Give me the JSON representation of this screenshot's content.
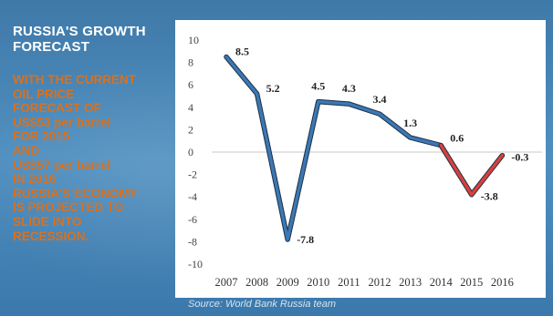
{
  "slide": {
    "title_lines": [
      "RUSSIA'S GROWTH",
      "FORECAST"
    ],
    "body_lines": [
      "WITH THE CURRENT",
      "OIL PRICE",
      "FORECAST OF",
      "US$53 per barrel",
      "FOR 2015",
      "AND",
      "US$57 per barrel",
      "IN 2016",
      "RUSSIA'S ECONOMY",
      "IS PROJECTED TO",
      "SLIDE INTO",
      "RECESSION."
    ],
    "source": "Source: World Bank Russia team"
  },
  "colors": {
    "background": "#4a87b9",
    "body_text": "#d9711e",
    "actual_line": "#3b78b5",
    "forecast_line": "#d9403d"
  },
  "chart_data": {
    "type": "line",
    "x": [
      2007,
      2008,
      2009,
      2010,
      2011,
      2012,
      2013,
      2014,
      2015,
      2016
    ],
    "series": [
      {
        "values": [
          8.5,
          5.2,
          -7.8,
          4.5,
          4.3,
          3.4,
          1.3,
          0.6,
          -3.8,
          -0.3
        ],
        "forecast_from_index": 7
      }
    ],
    "data_labels": [
      "8.5",
      "5.2",
      "-7.8",
      "4.5",
      "4.3",
      "3.4",
      "1.3",
      "0.6",
      "-3.8",
      "-0.3"
    ],
    "y_ticks": [
      "10",
      "8",
      "6",
      "4",
      "2",
      "0",
      "-2",
      "-4",
      "-6",
      "-8",
      "-10"
    ],
    "ylim": [
      -10,
      10
    ],
    "grid": false,
    "legend": "none"
  }
}
